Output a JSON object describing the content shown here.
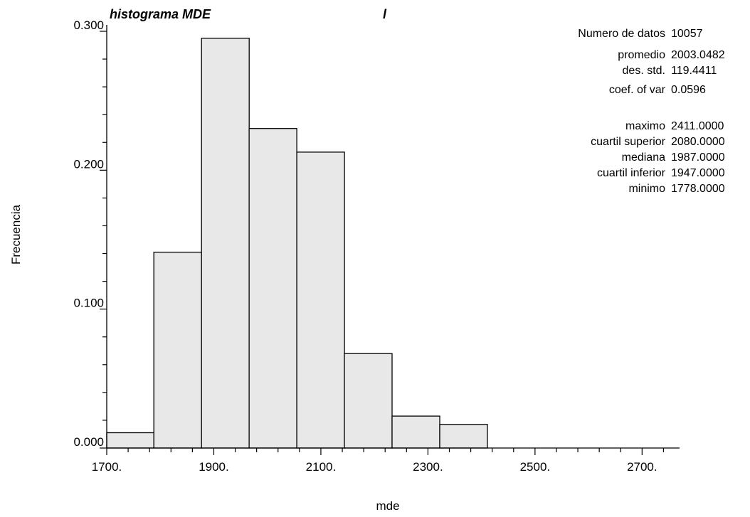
{
  "chart_data": {
    "type": "bar",
    "title": "histograma MDE",
    "title_suffix": "l",
    "xlabel": "mde",
    "ylabel": "Frecuencia",
    "xlim": [
      1700,
      2770
    ],
    "ylim": [
      0,
      0.3
    ],
    "x_ticks": [
      1700,
      1900,
      2100,
      2300,
      2500,
      2700
    ],
    "x_tick_labels": [
      "1700.",
      "1900.",
      "2100.",
      "2300.",
      "2500.",
      "2700."
    ],
    "y_major_ticks": [
      0,
      0.1,
      0.2,
      0.3
    ],
    "y_tick_labels": [
      "0.000",
      "0.100",
      "0.200",
      "0.300"
    ],
    "y_minor_step": 0.02,
    "x_minor_step": 40,
    "bins": [
      {
        "start": 1700,
        "end": 1788,
        "value": 0.011
      },
      {
        "start": 1788,
        "end": 1877,
        "value": 0.141
      },
      {
        "start": 1877,
        "end": 1966,
        "value": 0.295
      },
      {
        "start": 1966,
        "end": 2055,
        "value": 0.23
      },
      {
        "start": 2055,
        "end": 2144,
        "value": 0.213
      },
      {
        "start": 2144,
        "end": 2233,
        "value": 0.068
      },
      {
        "start": 2233,
        "end": 2322,
        "value": 0.023
      },
      {
        "start": 2322,
        "end": 2411,
        "value": 0.017
      }
    ],
    "bar_color": "#e8e8e8",
    "bar_edge_color": "#000000",
    "grid": false,
    "stats": [
      {
        "label": "Numero de datos",
        "value": "10057"
      },
      {
        "label": "promedio",
        "value": "2003.0482"
      },
      {
        "label": "des. std.",
        "value": "119.4411"
      },
      {
        "label": "coef. of var",
        "value": "0.0596"
      },
      {
        "label": "maximo",
        "value": "2411.0000"
      },
      {
        "label": "cuartil superior",
        "value": "2080.0000"
      },
      {
        "label": "mediana",
        "value": "1987.0000"
      },
      {
        "label": "cuartil inferior",
        "value": "1947.0000"
      },
      {
        "label": "minimo",
        "value": "1778.0000"
      }
    ]
  }
}
